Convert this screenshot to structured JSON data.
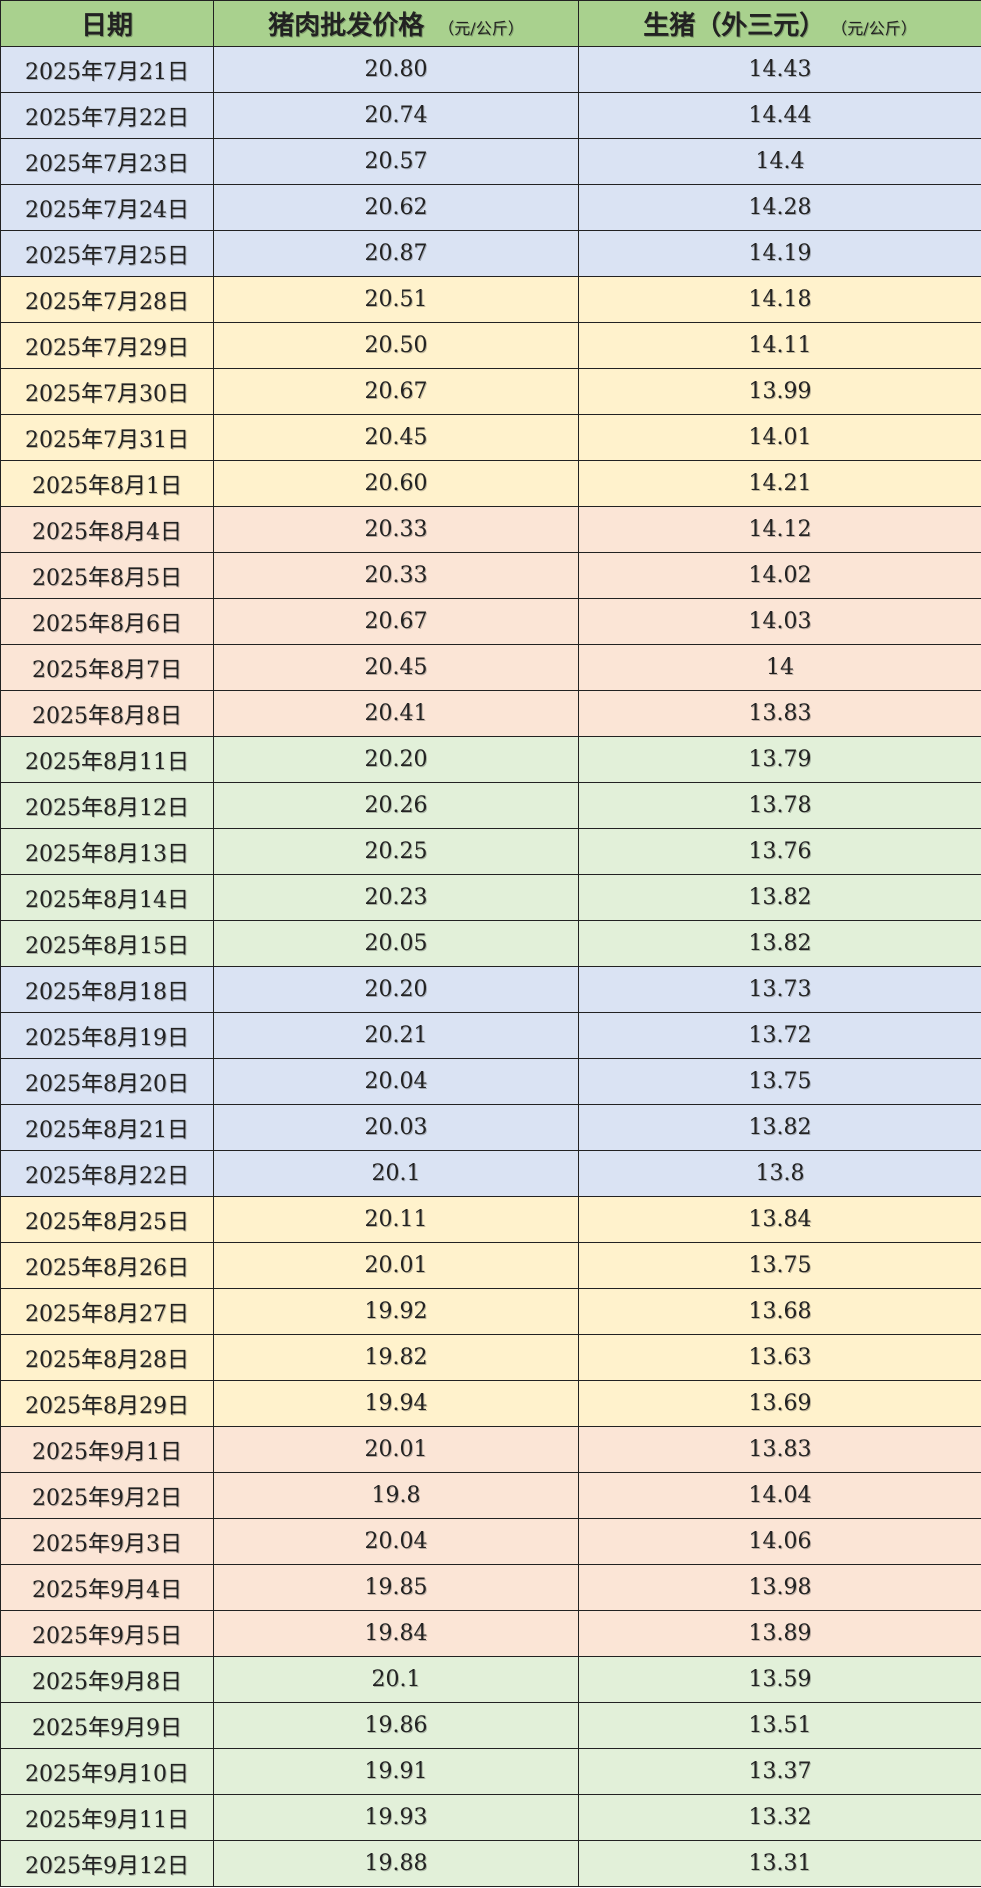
{
  "header": {
    "date": "日期",
    "pork": "猪肉批发价格",
    "pork_unit": "（元/公斤）",
    "hog": "生猪（外三元）",
    "hog_unit": "（元/公斤）"
  },
  "colors": {
    "header": "#a9d18e",
    "band": [
      "#dae3f3",
      "#fff2cc",
      "#fbe5d6",
      "#e2f0d9"
    ]
  },
  "rows": [
    {
      "date": "2025年7月21日",
      "pork": "20.80",
      "hog": "14.43"
    },
    {
      "date": "2025年7月22日",
      "pork": "20.74",
      "hog": "14.44"
    },
    {
      "date": "2025年7月23日",
      "pork": "20.57",
      "hog": "14.4"
    },
    {
      "date": "2025年7月24日",
      "pork": "20.62",
      "hog": "14.28"
    },
    {
      "date": "2025年7月25日",
      "pork": "20.87",
      "hog": "14.19"
    },
    {
      "date": "2025年7月28日",
      "pork": "20.51",
      "hog": "14.18"
    },
    {
      "date": "2025年7月29日",
      "pork": "20.50",
      "hog": "14.11"
    },
    {
      "date": "2025年7月30日",
      "pork": "20.67",
      "hog": "13.99"
    },
    {
      "date": "2025年7月31日",
      "pork": "20.45",
      "hog": "14.01"
    },
    {
      "date": "2025年8月1日",
      "pork": "20.60",
      "hog": "14.21"
    },
    {
      "date": "2025年8月4日",
      "pork": "20.33",
      "hog": "14.12"
    },
    {
      "date": "2025年8月5日",
      "pork": "20.33",
      "hog": "14.02"
    },
    {
      "date": "2025年8月6日",
      "pork": "20.67",
      "hog": "14.03"
    },
    {
      "date": "2025年8月7日",
      "pork": "20.45",
      "hog": "14"
    },
    {
      "date": "2025年8月8日",
      "pork": "20.41",
      "hog": "13.83"
    },
    {
      "date": "2025年8月11日",
      "pork": "20.20",
      "hog": "13.79"
    },
    {
      "date": "2025年8月12日",
      "pork": "20.26",
      "hog": "13.78"
    },
    {
      "date": "2025年8月13日",
      "pork": "20.25",
      "hog": "13.76"
    },
    {
      "date": "2025年8月14日",
      "pork": "20.23",
      "hog": "13.82"
    },
    {
      "date": "2025年8月15日",
      "pork": "20.05",
      "hog": "13.82"
    },
    {
      "date": "2025年8月18日",
      "pork": "20.20",
      "hog": "13.73"
    },
    {
      "date": "2025年8月19日",
      "pork": "20.21",
      "hog": "13.72"
    },
    {
      "date": "2025年8月20日",
      "pork": "20.04",
      "hog": "13.75"
    },
    {
      "date": "2025年8月21日",
      "pork": "20.03",
      "hog": "13.82"
    },
    {
      "date": "2025年8月22日",
      "pork": "20.1",
      "hog": "13.8"
    },
    {
      "date": "2025年8月25日",
      "pork": "20.11",
      "hog": "13.84"
    },
    {
      "date": "2025年8月26日",
      "pork": "20.01",
      "hog": "13.75"
    },
    {
      "date": "2025年8月27日",
      "pork": "19.92",
      "hog": "13.68"
    },
    {
      "date": "2025年8月28日",
      "pork": "19.82",
      "hog": "13.63"
    },
    {
      "date": "2025年8月29日",
      "pork": "19.94",
      "hog": "13.69"
    },
    {
      "date": "2025年9月1日",
      "pork": "20.01",
      "hog": "13.83"
    },
    {
      "date": "2025年9月2日",
      "pork": "19.8",
      "hog": "14.04"
    },
    {
      "date": "2025年9月3日",
      "pork": "20.04",
      "hog": "14.06"
    },
    {
      "date": "2025年9月4日",
      "pork": "19.85",
      "hog": "13.98"
    },
    {
      "date": "2025年9月5日",
      "pork": "19.84",
      "hog": "13.89"
    },
    {
      "date": "2025年9月8日",
      "pork": "20.1",
      "hog": "13.59"
    },
    {
      "date": "2025年9月9日",
      "pork": "19.86",
      "hog": "13.51"
    },
    {
      "date": "2025年9月10日",
      "pork": "19.91",
      "hog": "13.37"
    },
    {
      "date": "2025年9月11日",
      "pork": "19.93",
      "hog": "13.32"
    },
    {
      "date": "2025年9月12日",
      "pork": "19.88",
      "hog": "13.31"
    }
  ]
}
